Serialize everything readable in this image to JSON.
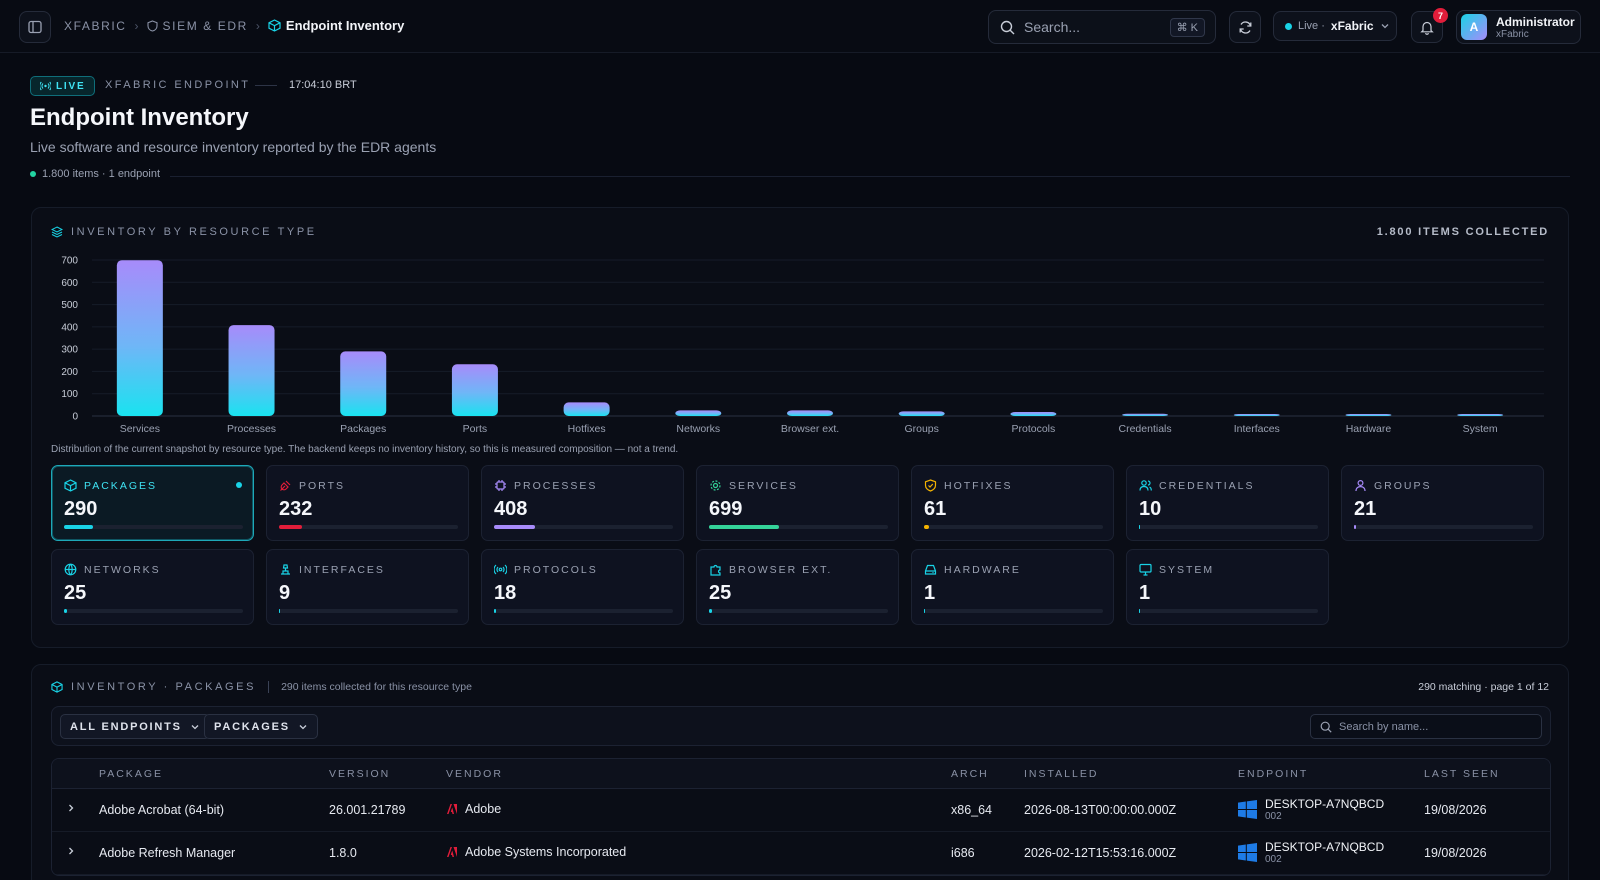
{
  "header": {
    "breadcrumbs": [
      "XFABRIC",
      "SIEM & EDR",
      "Endpoint Inventory"
    ],
    "search_placeholder": "Search...",
    "search_shortcut": "⌘ K",
    "live_label": "Live ·",
    "tenant": "xFabric",
    "notification_count": "7",
    "user": {
      "initial": "A",
      "name": "Administrator",
      "org": "xFabric"
    }
  },
  "hero": {
    "live_tag": "LIVE",
    "eyebrow": "XFABRIC ENDPOINT",
    "clock": "17:04:10 BRT",
    "title": "Endpoint Inventory",
    "subtitle": "Live software and resource inventory reported by the EDR agents",
    "meta": "1.800 items · 1 endpoint"
  },
  "chart_panel": {
    "heading": "INVENTORY BY RESOURCE TYPE",
    "total": "1.800 ITEMS COLLECTED",
    "note": "Distribution of the current snapshot by resource type. The backend keeps no inventory history, so this is measured composition — not a trend."
  },
  "chart_data": {
    "type": "bar",
    "categories": [
      "Services",
      "Processes",
      "Packages",
      "Ports",
      "Hotfixes",
      "Networks",
      "Browser ext.",
      "Groups",
      "Protocols",
      "Credentials",
      "Interfaces",
      "Hardware",
      "System"
    ],
    "values": [
      699,
      408,
      290,
      232,
      61,
      25,
      25,
      21,
      18,
      10,
      9,
      1,
      1
    ],
    "yticks": [
      0,
      100,
      200,
      300,
      400,
      500,
      600,
      700
    ],
    "ylim": [
      0,
      700
    ],
    "grid": true,
    "colors": {
      "top": "#a78bfa",
      "bottom": "#19e3f0"
    }
  },
  "cards": [
    {
      "label": "PACKAGES",
      "value": "290",
      "fraction": 0.16,
      "color": "#19d3e6",
      "icon": "package-icon",
      "active": true
    },
    {
      "label": "PORTS",
      "value": "232",
      "fraction": 0.13,
      "color": "#e11d3a",
      "icon": "plug-icon"
    },
    {
      "label": "PROCESSES",
      "value": "408",
      "fraction": 0.23,
      "color": "#a78bfa",
      "icon": "cpu-icon"
    },
    {
      "label": "SERVICES",
      "value": "699",
      "fraction": 0.39,
      "color": "#34d399",
      "icon": "gear-icon"
    },
    {
      "label": "HOTFIXES",
      "value": "61",
      "fraction": 0.03,
      "color": "#f5b301",
      "icon": "shield-icon"
    },
    {
      "label": "CREDENTIALS",
      "value": "10",
      "fraction": 0.006,
      "color": "#19d3e6",
      "icon": "users-icon"
    },
    {
      "label": "GROUPS",
      "value": "21",
      "fraction": 0.012,
      "color": "#a78bfa",
      "icon": "group-icon"
    },
    {
      "label": "NETWORKS",
      "value": "25",
      "fraction": 0.014,
      "color": "#19d3e6",
      "icon": "globe-icon"
    },
    {
      "label": "INTERFACES",
      "value": "9",
      "fraction": 0.005,
      "color": "#19d3e6",
      "icon": "network-icon"
    },
    {
      "label": "PROTOCOLS",
      "value": "18",
      "fraction": 0.01,
      "color": "#19d3e6",
      "icon": "broadcast-icon"
    },
    {
      "label": "BROWSER EXT.",
      "value": "25",
      "fraction": 0.014,
      "color": "#19d3e6",
      "icon": "puzzle-icon"
    },
    {
      "label": "HARDWARE",
      "value": "1",
      "fraction": 0.001,
      "color": "#19d3e6",
      "icon": "hard-drive-icon"
    },
    {
      "label": "SYSTEM",
      "value": "1",
      "fraction": 0.001,
      "color": "#19d3e6",
      "icon": "monitor-icon"
    }
  ],
  "inventory": {
    "heading": "INVENTORY · PACKAGES",
    "subheading": "290 items collected for this resource type",
    "pagination": "290 matching · page 1 of 12",
    "filter_endpoint": "ALL ENDPOINTS",
    "filter_type": "PACKAGES",
    "search_placeholder": "Search by name...",
    "columns": [
      "PACKAGE",
      "VERSION",
      "VENDOR",
      "ARCH",
      "INSTALLED",
      "ENDPOINT",
      "LAST SEEN"
    ],
    "rows": [
      {
        "package": "Adobe Acrobat (64-bit)",
        "version": "26.001.21789",
        "vendor": "Adobe",
        "arch": "x86_64",
        "installed": "2026-08-13T00:00:00.000Z",
        "endpoint": "DESKTOP-A7NQBCD",
        "endpoint_id": "002",
        "last_seen": "19/08/2026"
      },
      {
        "package": "Adobe Refresh Manager",
        "version": "1.8.0",
        "vendor": "Adobe Systems Incorporated",
        "arch": "i686",
        "installed": "2026-02-12T15:53:16.000Z",
        "endpoint": "DESKTOP-A7NQBCD",
        "endpoint_id": "002",
        "last_seen": "19/08/2026"
      }
    ]
  }
}
